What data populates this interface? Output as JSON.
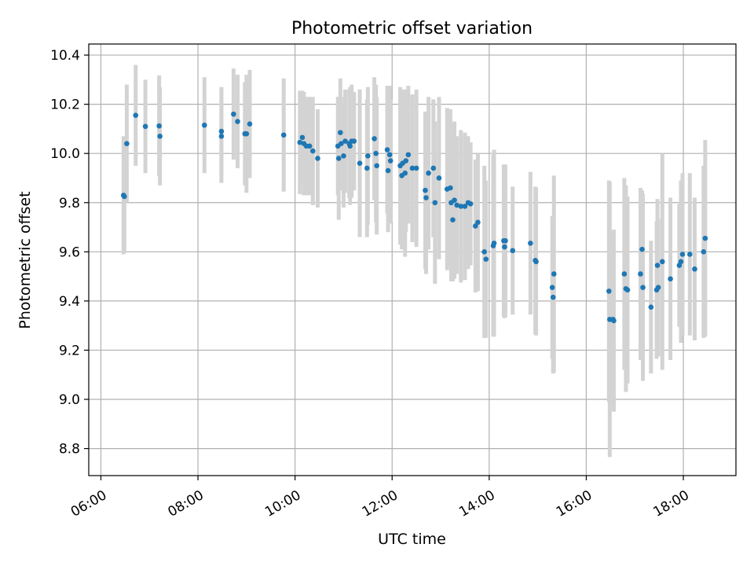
{
  "chart_data": {
    "type": "scatter",
    "title": "Photometric offset variation",
    "xlabel": "UTC time",
    "ylabel": "Photometric offset",
    "xlim": [
      "05:45",
      "19:05"
    ],
    "ylim": [
      8.69,
      10.445
    ],
    "grid": true,
    "x_ticks": [
      "06:00",
      "08:00",
      "10:00",
      "12:00",
      "14:00",
      "16:00",
      "18:00"
    ],
    "y_ticks": [
      "8.8",
      "9.0",
      "9.2",
      "9.4",
      "9.6",
      "9.8",
      "10.0",
      "10.2",
      "10.4"
    ],
    "colors": {
      "points": "#1f77b4",
      "error_bars": "#d3d3d3",
      "grid": "#b0b0b0"
    },
    "points": [
      {
        "x": "06:28",
        "y": 9.83,
        "err": 0.24
      },
      {
        "x": "06:29",
        "y": 9.825,
        "err": 0.23
      },
      {
        "x": "06:32",
        "y": 10.04,
        "err": 0.24
      },
      {
        "x": "06:43",
        "y": 10.155,
        "err": 0.205
      },
      {
        "x": "06:55",
        "y": 10.11,
        "err": 0.19
      },
      {
        "x": "07:12",
        "y": 10.112,
        "err": 0.205
      },
      {
        "x": "07:13",
        "y": 10.07,
        "err": 0.2
      },
      {
        "x": "08:08",
        "y": 10.115,
        "err": 0.195
      },
      {
        "x": "08:29",
        "y": 10.09,
        "err": 0.18
      },
      {
        "x": "08:29",
        "y": 10.07,
        "err": 0.19
      },
      {
        "x": "08:44",
        "y": 10.16,
        "err": 0.185
      },
      {
        "x": "08:49",
        "y": 10.13,
        "err": 0.19
      },
      {
        "x": "08:58",
        "y": 10.08,
        "err": 0.21
      },
      {
        "x": "09:00",
        "y": 10.08,
        "err": 0.24
      },
      {
        "x": "09:04",
        "y": 10.12,
        "err": 0.22
      },
      {
        "x": "09:46",
        "y": 10.075,
        "err": 0.23
      },
      {
        "x": "10:06",
        "y": 10.045,
        "err": 0.21
      },
      {
        "x": "10:09",
        "y": 10.065,
        "err": 0.19
      },
      {
        "x": "10:11",
        "y": 10.04,
        "err": 0.21
      },
      {
        "x": "10:14",
        "y": 10.03,
        "err": 0.2
      },
      {
        "x": "10:18",
        "y": 10.03,
        "err": 0.2
      },
      {
        "x": "10:22",
        "y": 10.01,
        "err": 0.22
      },
      {
        "x": "10:28",
        "y": 9.98,
        "err": 0.2
      },
      {
        "x": "10:53",
        "y": 10.03,
        "err": 0.2
      },
      {
        "x": "10:54",
        "y": 9.98,
        "err": 0.25
      },
      {
        "x": "10:56",
        "y": 10.085,
        "err": 0.22
      },
      {
        "x": "10:57",
        "y": 10.04,
        "err": 0.19
      },
      {
        "x": "11:00",
        "y": 9.99,
        "err": 0.21
      },
      {
        "x": "11:02",
        "y": 10.05,
        "err": 0.21
      },
      {
        "x": "11:07",
        "y": 10.04,
        "err": 0.22
      },
      {
        "x": "11:08",
        "y": 10.03,
        "err": 0.24
      },
      {
        "x": "11:10",
        "y": 10.05,
        "err": 0.23
      },
      {
        "x": "11:13",
        "y": 10.05,
        "err": 0.2
      },
      {
        "x": "11:20",
        "y": 9.96,
        "err": 0.3
      },
      {
        "x": "11:29",
        "y": 9.94,
        "err": 0.28
      },
      {
        "x": "11:30",
        "y": 9.99,
        "err": 0.28
      },
      {
        "x": "11:38",
        "y": 10.06,
        "err": 0.25
      },
      {
        "x": "11:40",
        "y": 10.0,
        "err": 0.28
      },
      {
        "x": "11:41",
        "y": 9.95,
        "err": 0.28
      },
      {
        "x": "11:54",
        "y": 10.015,
        "err": 0.26
      },
      {
        "x": "11:55",
        "y": 9.93,
        "err": 0.25
      },
      {
        "x": "11:57",
        "y": 9.995,
        "err": 0.28
      },
      {
        "x": "11:58",
        "y": 9.97,
        "err": 0.25
      },
      {
        "x": "12:10",
        "y": 9.95,
        "err": 0.32
      },
      {
        "x": "12:12",
        "y": 9.91,
        "err": 0.3
      },
      {
        "x": "12:13",
        "y": 9.96,
        "err": 0.3
      },
      {
        "x": "12:16",
        "y": 9.92,
        "err": 0.34
      },
      {
        "x": "12:17",
        "y": 9.97,
        "err": 0.29
      },
      {
        "x": "12:20",
        "y": 9.995,
        "err": 0.28
      },
      {
        "x": "12:25",
        "y": 9.94,
        "err": 0.3
      },
      {
        "x": "12:30",
        "y": 9.94,
        "err": 0.32
      },
      {
        "x": "12:41",
        "y": 9.85,
        "err": 0.32
      },
      {
        "x": "12:42",
        "y": 9.82,
        "err": 0.31
      },
      {
        "x": "12:45",
        "y": 9.92,
        "err": 0.31
      },
      {
        "x": "12:51",
        "y": 9.94,
        "err": 0.28
      },
      {
        "x": "12:53",
        "y": 9.8,
        "err": 0.33
      },
      {
        "x": "12:58",
        "y": 9.9,
        "err": 0.33
      },
      {
        "x": "13:08",
        "y": 9.855,
        "err": 0.33
      },
      {
        "x": "13:12",
        "y": 9.86,
        "err": 0.32
      },
      {
        "x": "13:13",
        "y": 9.8,
        "err": 0.32
      },
      {
        "x": "13:15",
        "y": 9.73,
        "err": 0.25
      },
      {
        "x": "13:17",
        "y": 9.81,
        "err": 0.32
      },
      {
        "x": "13:20",
        "y": 9.79,
        "err": 0.28
      },
      {
        "x": "13:25",
        "y": 9.785,
        "err": 0.31
      },
      {
        "x": "13:30",
        "y": 9.785,
        "err": 0.3
      },
      {
        "x": "13:34",
        "y": 9.8,
        "err": 0.27
      },
      {
        "x": "13:37",
        "y": 9.795,
        "err": 0.25
      },
      {
        "x": "13:43",
        "y": 9.705,
        "err": 0.27
      },
      {
        "x": "13:46",
        "y": 9.72,
        "err": 0.28
      },
      {
        "x": "13:54",
        "y": 9.6,
        "err": 0.35
      },
      {
        "x": "13:56",
        "y": 9.57,
        "err": 0.32
      },
      {
        "x": "14:05",
        "y": 9.625,
        "err": 0.37
      },
      {
        "x": "14:06",
        "y": 9.635,
        "err": 0.38
      },
      {
        "x": "14:18",
        "y": 9.645,
        "err": 0.31
      },
      {
        "x": "14:19",
        "y": 9.62,
        "err": 0.29
      },
      {
        "x": "14:20",
        "y": 9.645,
        "err": 0.31
      },
      {
        "x": "14:29",
        "y": 9.605,
        "err": 0.26
      },
      {
        "x": "14:51",
        "y": 9.635,
        "err": 0.29
      },
      {
        "x": "14:57",
        "y": 9.565,
        "err": 0.3
      },
      {
        "x": "14:58",
        "y": 9.56,
        "err": 0.3
      },
      {
        "x": "15:18",
        "y": 9.455,
        "err": 0.29
      },
      {
        "x": "15:19",
        "y": 9.415,
        "err": 0.31
      },
      {
        "x": "15:20",
        "y": 9.51,
        "err": 0.4
      },
      {
        "x": "16:28",
        "y": 9.44,
        "err": 0.45
      },
      {
        "x": "16:29",
        "y": 9.325,
        "err": 0.56
      },
      {
        "x": "16:33",
        "y": 9.325,
        "err": 0.35
      },
      {
        "x": "16:34",
        "y": 9.32,
        "err": 0.37
      },
      {
        "x": "16:47",
        "y": 9.51,
        "err": 0.39
      },
      {
        "x": "16:49",
        "y": 9.45,
        "err": 0.42
      },
      {
        "x": "16:51",
        "y": 9.445,
        "err": 0.38
      },
      {
        "x": "17:07",
        "y": 9.51,
        "err": 0.35
      },
      {
        "x": "17:09",
        "y": 9.61,
        "err": 0.24
      },
      {
        "x": "17:10",
        "y": 9.455,
        "err": 0.38
      },
      {
        "x": "17:20",
        "y": 9.375,
        "err": 0.27
      },
      {
        "x": "17:27",
        "y": 9.445,
        "err": 0.28
      },
      {
        "x": "17:28",
        "y": 9.545,
        "err": 0.27
      },
      {
        "x": "17:29",
        "y": 9.455,
        "err": 0.28
      },
      {
        "x": "17:34",
        "y": 9.56,
        "err": 0.44
      },
      {
        "x": "17:44",
        "y": 9.49,
        "err": 0.33
      },
      {
        "x": "17:55",
        "y": 9.545,
        "err": 0.25
      },
      {
        "x": "17:57",
        "y": 9.56,
        "err": 0.33
      },
      {
        "x": "17:59",
        "y": 9.59,
        "err": 0.33
      },
      {
        "x": "18:08",
        "y": 9.59,
        "err": 0.33
      },
      {
        "x": "18:14",
        "y": 9.53,
        "err": 0.29
      },
      {
        "x": "18:25",
        "y": 9.6,
        "err": 0.35
      },
      {
        "x": "18:27",
        "y": 9.655,
        "err": 0.4
      }
    ]
  }
}
